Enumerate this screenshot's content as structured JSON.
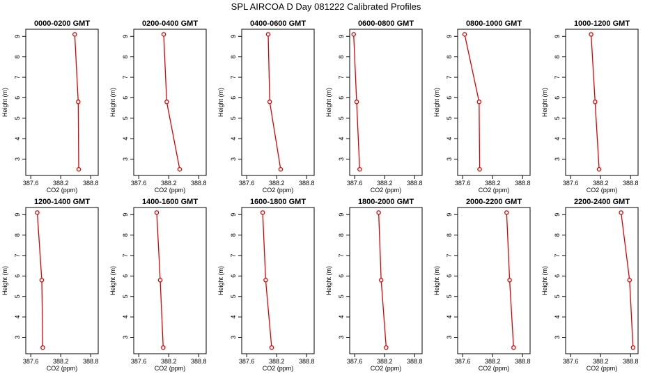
{
  "title": "SPL AIRCOA D  Day 081222  Calibrated Profiles",
  "chart_data": {
    "type": "line",
    "panel_count": 12,
    "xlabel": "CO2 (ppm)",
    "ylabel": "Height (m)",
    "xlim": [
      387.5,
      388.95
    ],
    "ylim": [
      2.2,
      9.35
    ],
    "xticks": [
      "387.6",
      "388.2",
      "388.8"
    ],
    "yticks": [
      "3",
      "4",
      "5",
      "6",
      "7",
      "8",
      "9"
    ],
    "grid": false,
    "colors": {
      "series": "#dd0000",
      "axes": "#000000"
    },
    "panels": [
      {
        "name": "0000-0200 GMT",
        "x": [
          388.48,
          388.55,
          388.56
        ],
        "y": [
          9.1,
          5.8,
          2.5
        ]
      },
      {
        "name": "0200-0400 GMT",
        "x": [
          388.1,
          388.16,
          388.42
        ],
        "y": [
          9.1,
          5.8,
          2.5
        ]
      },
      {
        "name": "0400-0600 GMT",
        "x": [
          388.03,
          388.06,
          388.28
        ],
        "y": [
          9.1,
          5.8,
          2.5
        ]
      },
      {
        "name": "0600-0800 GMT",
        "x": [
          387.58,
          387.64,
          387.7
        ],
        "y": [
          9.1,
          5.8,
          2.5
        ]
      },
      {
        "name": "0800-1000 GMT",
        "x": [
          387.64,
          387.93,
          387.94
        ],
        "y": [
          9.1,
          5.8,
          2.5
        ]
      },
      {
        "name": "1000-1200 GMT",
        "x": [
          388.01,
          388.09,
          388.17
        ],
        "y": [
          9.1,
          5.8,
          2.5
        ]
      },
      {
        "name": "1200-1400 GMT",
        "x": [
          387.73,
          387.82,
          387.84
        ],
        "y": [
          9.1,
          5.8,
          2.5
        ]
      },
      {
        "name": "1400-1600 GMT",
        "x": [
          387.96,
          388.03,
          388.09
        ],
        "y": [
          9.1,
          5.8,
          2.5
        ]
      },
      {
        "name": "1600-1800 GMT",
        "x": [
          387.92,
          387.98,
          388.1
        ],
        "y": [
          9.1,
          5.8,
          2.5
        ]
      },
      {
        "name": "1800-2000 GMT",
        "x": [
          388.08,
          388.13,
          388.23
        ],
        "y": [
          9.1,
          5.8,
          2.5
        ]
      },
      {
        "name": "2000-2200 GMT",
        "x": [
          388.48,
          388.54,
          388.62
        ],
        "y": [
          9.1,
          5.8,
          2.5
        ]
      },
      {
        "name": "2200-2400 GMT",
        "x": [
          388.61,
          388.78,
          388.85
        ],
        "y": [
          9.1,
          5.8,
          2.5
        ]
      }
    ]
  }
}
